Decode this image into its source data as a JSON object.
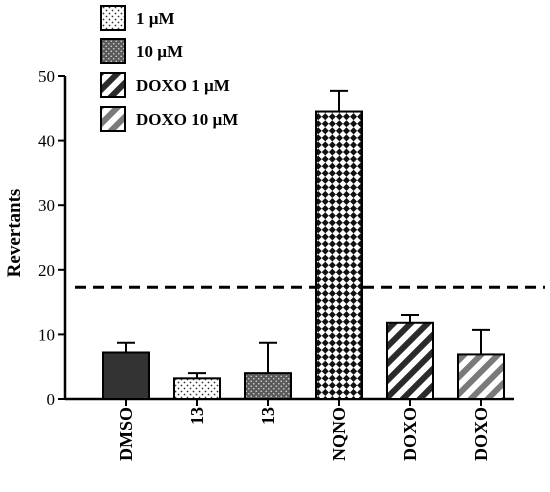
{
  "chart_data": {
    "type": "bar",
    "ylabel": "Revertants",
    "xlabel": "",
    "ylim": [
      0,
      50
    ],
    "yticks": [
      0,
      10,
      20,
      30,
      40,
      50
    ],
    "threshold": 17.3,
    "grid": false,
    "legend_placement": "top-left",
    "legend": [
      {
        "label": "1 µM",
        "pattern": "dots-light"
      },
      {
        "label": "10 µM",
        "pattern": "dots-dark"
      },
      {
        "label": "DOXO 1 µM",
        "pattern": "stripes-dark"
      },
      {
        "label": "DOXO 10 µM",
        "pattern": "stripes-gray"
      }
    ],
    "bars": [
      {
        "category": "DMSO",
        "value": 7.2,
        "error": 1.5,
        "pattern": "solid"
      },
      {
        "category": "13",
        "value": 3.2,
        "error": 0.8,
        "pattern": "dots-light"
      },
      {
        "category": "13",
        "value": 4.0,
        "error": 4.7,
        "pattern": "dots-dark"
      },
      {
        "category": "NQNO",
        "value": 44.5,
        "error": 3.2,
        "pattern": "checker"
      },
      {
        "category": "DOXO",
        "value": 11.8,
        "error": 1.2,
        "pattern": "stripes-dark"
      },
      {
        "category": "DOXO",
        "value": 6.9,
        "error": 3.8,
        "pattern": "stripes-gray"
      }
    ]
  }
}
